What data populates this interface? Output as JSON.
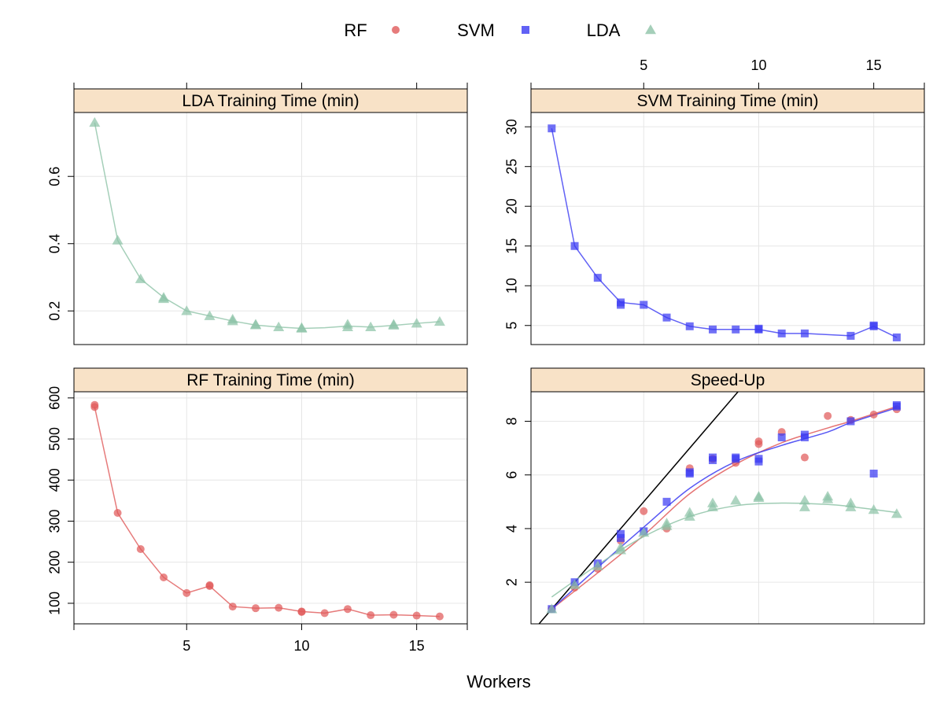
{
  "colors": {
    "RF": "#e05a5a",
    "SVM": "#3a3af2",
    "LDA": "#8ec3a7",
    "strip_bg": "#f8e2c7",
    "grid": "#e6e6e6",
    "reference_line": "#000000"
  },
  "legend": [
    {
      "label": "RF",
      "shape": "circle",
      "color_key": "RF"
    },
    {
      "label": "SVM",
      "shape": "square",
      "color_key": "SVM"
    },
    {
      "label": "LDA",
      "shape": "triangle",
      "color_key": "LDA"
    }
  ],
  "xlabel": "Workers",
  "chart_data": [
    {
      "panel": "LDA Training Time (min)",
      "type": "line",
      "series_key": "LDA",
      "xlim": [
        0.1,
        17.2
      ],
      "ylim": [
        0.1,
        0.79
      ],
      "xticks": [
        5,
        10,
        15
      ],
      "yticks": [
        0.2,
        0.4,
        0.6
      ],
      "x": [
        1,
        2,
        3,
        4,
        5,
        6,
        7,
        8,
        9,
        10,
        11,
        12,
        13,
        14,
        15,
        16
      ],
      "values": [
        0.76,
        0.41,
        0.295,
        0.24,
        0.2,
        0.185,
        0.17,
        0.158,
        0.152,
        0.148,
        0.15,
        0.155,
        0.152,
        0.157,
        0.163,
        0.168
      ],
      "points": [
        [
          1,
          0.76
        ],
        [
          2,
          0.41
        ],
        [
          3,
          0.295
        ],
        [
          4,
          0.24
        ],
        [
          4,
          0.236
        ],
        [
          5,
          0.2
        ],
        [
          6,
          0.185
        ],
        [
          7,
          0.17
        ],
        [
          7,
          0.175
        ],
        [
          8,
          0.158
        ],
        [
          8,
          0.16
        ],
        [
          9,
          0.152
        ],
        [
          10,
          0.148
        ],
        [
          10,
          0.15
        ],
        [
          12,
          0.16
        ],
        [
          12,
          0.152
        ],
        [
          13,
          0.152
        ],
        [
          14,
          0.157
        ],
        [
          14,
          0.16
        ],
        [
          15,
          0.163
        ],
        [
          16,
          0.168
        ]
      ]
    },
    {
      "panel": "SVM Training Time (min)",
      "type": "line",
      "series_key": "SVM",
      "xlim": [
        0.1,
        17.2
      ],
      "ylim": [
        2.6,
        31.8
      ],
      "xticks": [
        5,
        10,
        15
      ],
      "yticks": [
        5,
        10,
        15,
        20,
        25,
        30
      ],
      "x": [
        1,
        2,
        3,
        4,
        5,
        6,
        7,
        8,
        9,
        10,
        11,
        12,
        14,
        15,
        16
      ],
      "values": [
        29.8,
        15.0,
        11.0,
        7.9,
        7.6,
        6.0,
        4.9,
        4.5,
        4.5,
        4.5,
        4.0,
        4.0,
        3.7,
        4.9,
        3.5
      ],
      "points": [
        [
          1,
          29.8
        ],
        [
          2,
          15.0
        ],
        [
          3,
          11.0
        ],
        [
          4,
          7.9
        ],
        [
          4,
          7.6
        ],
        [
          5,
          7.6
        ],
        [
          6,
          6.0
        ],
        [
          7,
          4.9
        ],
        [
          8,
          4.5
        ],
        [
          9,
          4.5
        ],
        [
          10,
          4.5
        ],
        [
          10,
          4.6
        ],
        [
          11,
          4.0
        ],
        [
          12,
          4.0
        ],
        [
          14,
          3.7
        ],
        [
          15,
          4.9
        ],
        [
          15,
          5.0
        ],
        [
          16,
          3.5
        ]
      ]
    },
    {
      "panel": "RF Training Time (min)",
      "type": "line",
      "series_key": "RF",
      "xlim": [
        0.1,
        17.2
      ],
      "ylim": [
        50,
        615
      ],
      "xticks": [
        5,
        10,
        15
      ],
      "yticks": [
        100,
        200,
        300,
        400,
        500,
        600
      ],
      "x": [
        1,
        2,
        3,
        4,
        5,
        6,
        7,
        8,
        9,
        10,
        11,
        12,
        13,
        14,
        15,
        16
      ],
      "values": [
        578,
        320,
        232,
        163,
        125,
        142,
        92,
        88,
        89,
        80,
        76,
        86,
        71,
        72,
        70,
        68
      ],
      "points": [
        [
          1,
          578
        ],
        [
          1,
          583
        ],
        [
          2,
          320
        ],
        [
          3,
          232
        ],
        [
          4,
          163
        ],
        [
          5,
          125
        ],
        [
          6,
          142
        ],
        [
          6,
          144
        ],
        [
          7,
          92
        ],
        [
          8,
          88
        ],
        [
          9,
          89
        ],
        [
          10,
          80
        ],
        [
          10,
          79
        ],
        [
          11,
          76
        ],
        [
          12,
          86
        ],
        [
          13,
          71
        ],
        [
          14,
          72
        ],
        [
          15,
          70
        ],
        [
          16,
          68
        ]
      ]
    },
    {
      "panel": "Speed-Up",
      "type": "scatter",
      "xlim": [
        0.1,
        17.2
      ],
      "ylim": [
        0.45,
        9.1
      ],
      "xticks": [
        5,
        10,
        15
      ],
      "yticks": [
        2,
        4,
        6,
        8
      ],
      "reference_line": {
        "slope": 1,
        "intercept": 0
      },
      "series": [
        {
          "name": "RF",
          "series_key": "RF",
          "points": [
            [
              1,
              1.0
            ],
            [
              2,
              1.8
            ],
            [
              3,
              2.5
            ],
            [
              4,
              3.55
            ],
            [
              5,
              4.65
            ],
            [
              6,
              4.0
            ],
            [
              7,
              6.25
            ],
            [
              8,
              6.6
            ],
            [
              9,
              6.45
            ],
            [
              10,
              7.25
            ],
            [
              10,
              7.15
            ],
            [
              11,
              7.6
            ],
            [
              12,
              6.65
            ],
            [
              13,
              8.2
            ],
            [
              14,
              8.05
            ],
            [
              15,
              8.25
            ],
            [
              16,
              8.45
            ]
          ],
          "smooth": [
            [
              1,
              1.0
            ],
            [
              3,
              2.35
            ],
            [
              5,
              3.75
            ],
            [
              7,
              5.3
            ],
            [
              9,
              6.4
            ],
            [
              11,
              7.2
            ],
            [
              13,
              7.75
            ],
            [
              14,
              8.0
            ],
            [
              16,
              8.55
            ]
          ]
        },
        {
          "name": "SVM",
          "series_key": "SVM",
          "points": [
            [
              1,
              1.0
            ],
            [
              2,
              2.0
            ],
            [
              3,
              2.7
            ],
            [
              4,
              3.8
            ],
            [
              4,
              3.65
            ],
            [
              5,
              3.9
            ],
            [
              6,
              5.0
            ],
            [
              7,
              6.1
            ],
            [
              7,
              6.05
            ],
            [
              8,
              6.65
            ],
            [
              8,
              6.55
            ],
            [
              9,
              6.65
            ],
            [
              9,
              6.6
            ],
            [
              10,
              6.6
            ],
            [
              10,
              6.5
            ],
            [
              11,
              7.4
            ],
            [
              12,
              7.4
            ],
            [
              12,
              7.5
            ],
            [
              14,
              8.0
            ],
            [
              15,
              6.05
            ],
            [
              16,
              8.6
            ],
            [
              16,
              8.55
            ]
          ],
          "smooth": [
            [
              1,
              1.0
            ],
            [
              3,
              2.55
            ],
            [
              5,
              4.05
            ],
            [
              7,
              5.5
            ],
            [
              9,
              6.5
            ],
            [
              11,
              7.1
            ],
            [
              13,
              7.6
            ],
            [
              14,
              7.95
            ],
            [
              16,
              8.5
            ]
          ]
        },
        {
          "name": "LDA",
          "series_key": "LDA",
          "points": [
            [
              1,
              1.0
            ],
            [
              2,
              1.9
            ],
            [
              3,
              2.6
            ],
            [
              4,
              3.2
            ],
            [
              4,
              3.3
            ],
            [
              5,
              3.85
            ],
            [
              6,
              4.1
            ],
            [
              6,
              4.2
            ],
            [
              7,
              4.45
            ],
            [
              7,
              4.6
            ],
            [
              8,
              4.8
            ],
            [
              8,
              4.95
            ],
            [
              9,
              5.05
            ],
            [
              10,
              5.15
            ],
            [
              10,
              5.2
            ],
            [
              12,
              4.8
            ],
            [
              12,
              5.05
            ],
            [
              13,
              5.1
            ],
            [
              13,
              5.2
            ],
            [
              14,
              4.8
            ],
            [
              14,
              4.95
            ],
            [
              15,
              4.7
            ],
            [
              16,
              4.55
            ]
          ],
          "smooth": [
            [
              1,
              1.45
            ],
            [
              3,
              2.65
            ],
            [
              5,
              3.7
            ],
            [
              7,
              4.45
            ],
            [
              9,
              4.85
            ],
            [
              11,
              4.95
            ],
            [
              13,
              4.9
            ],
            [
              14,
              4.82
            ],
            [
              16,
              4.6
            ]
          ]
        }
      ]
    }
  ]
}
